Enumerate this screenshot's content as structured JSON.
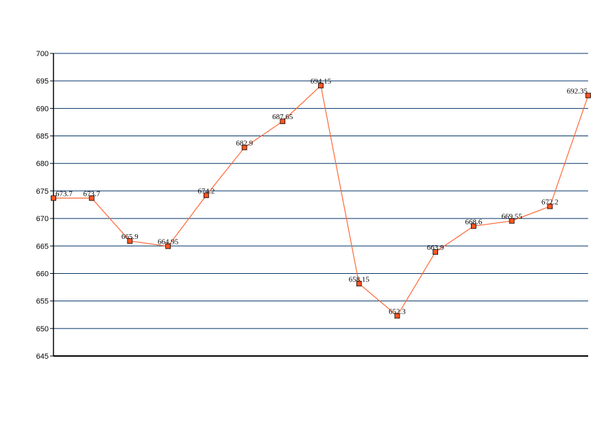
{
  "chart_data": {
    "type": "line",
    "title": "",
    "xlabel": "",
    "ylabel": "",
    "ylim": [
      645,
      700
    ],
    "y_ticks": [
      645,
      650,
      655,
      660,
      665,
      670,
      675,
      680,
      685,
      690,
      695,
      700
    ],
    "y_tick_labels": [
      "645",
      "650",
      "655",
      "660",
      "665",
      "670",
      "675",
      "680",
      "685",
      "690",
      "695",
      "700"
    ],
    "grid": true,
    "legend": "none",
    "series": [
      {
        "values": [
          673.7,
          673.7,
          665.9,
          664.95,
          674.2,
          682.9,
          687.65,
          694.15,
          658.15,
          652.3,
          663.9,
          668.6,
          669.55,
          672.2,
          692.35
        ],
        "data_labels": [
          "673.7",
          "673.7",
          "665.9",
          "664.95",
          "674.2",
          "682.9",
          "687.65",
          "694.15",
          "658.15",
          "652.3",
          "663.9",
          "668.6",
          "669.55",
          "672.2",
          "692.35"
        ],
        "color": "#ff6633",
        "marker_color": "#ff5522",
        "marker": "square"
      }
    ],
    "grid_color": "#003366",
    "axis_color": "#000000"
  }
}
